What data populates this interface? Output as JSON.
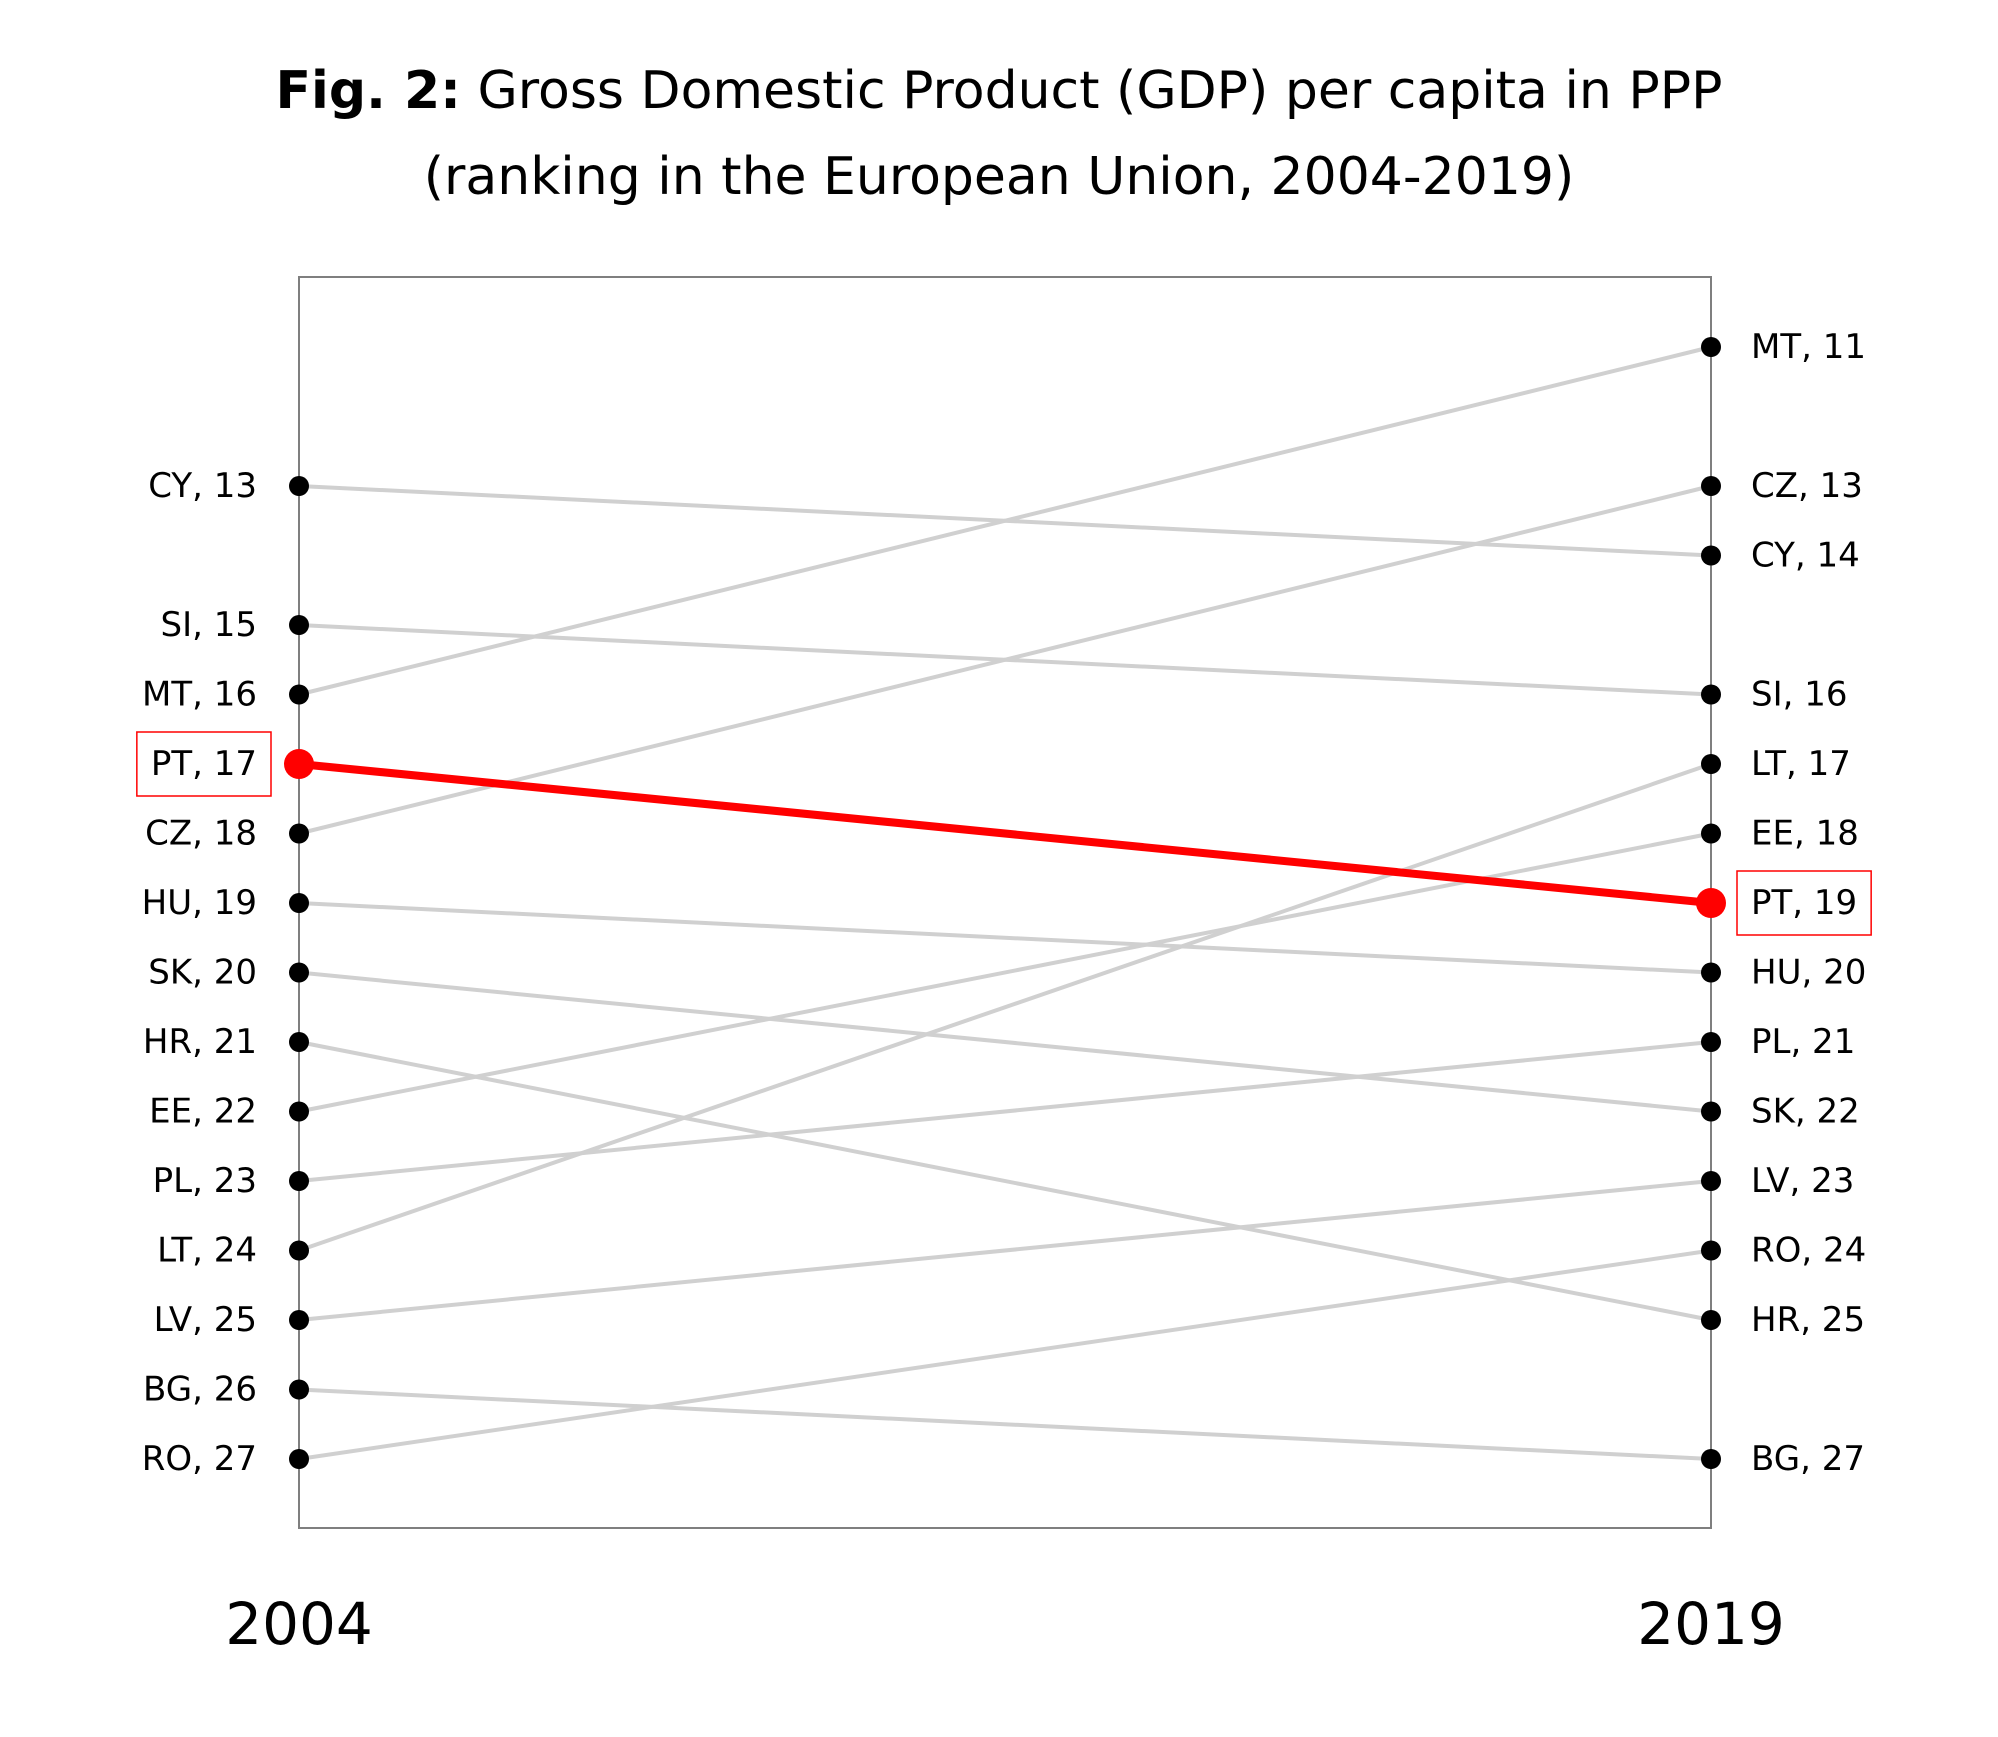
{
  "title": {
    "prefix": "Fig. 2:",
    "line1": "Gross Domestic Product (GDP) per capita in PPP",
    "line2": "(ranking in the European Union, 2004-2019)"
  },
  "colors": {
    "highlight": "#ff0000",
    "line": "#d0d0d0",
    "point": "#000000",
    "frame": "#7f7f7f"
  },
  "chart_data": {
    "type": "line",
    "subtype": "slope",
    "years": [
      "2004",
      "2019"
    ],
    "rank_axis": {
      "reversed": true,
      "range": [
        10,
        28
      ]
    },
    "grid": false,
    "highlight": "PT",
    "series": [
      {
        "name": "CY",
        "values": [
          13,
          14
        ]
      },
      {
        "name": "SI",
        "values": [
          15,
          16
        ]
      },
      {
        "name": "MT",
        "values": [
          16,
          11
        ]
      },
      {
        "name": "PT",
        "values": [
          17,
          19
        ]
      },
      {
        "name": "CZ",
        "values": [
          18,
          13
        ]
      },
      {
        "name": "HU",
        "values": [
          19,
          20
        ]
      },
      {
        "name": "SK",
        "values": [
          20,
          22
        ]
      },
      {
        "name": "HR",
        "values": [
          21,
          25
        ]
      },
      {
        "name": "EE",
        "values": [
          22,
          18
        ]
      },
      {
        "name": "PL",
        "values": [
          23,
          21
        ]
      },
      {
        "name": "LT",
        "values": [
          24,
          17
        ]
      },
      {
        "name": "LV",
        "values": [
          25,
          23
        ]
      },
      {
        "name": "BG",
        "values": [
          26,
          27
        ]
      },
      {
        "name": "RO",
        "values": [
          27,
          24
        ]
      }
    ]
  }
}
